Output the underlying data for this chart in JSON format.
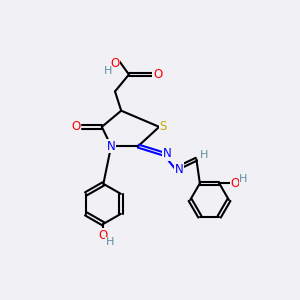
{
  "bg_color": "#f0f0f5",
  "atom_colors": {
    "C": "#000000",
    "H": "#5f8fa0",
    "O": "#ff0000",
    "N": "#0000ff",
    "S": "#ccaa00"
  }
}
